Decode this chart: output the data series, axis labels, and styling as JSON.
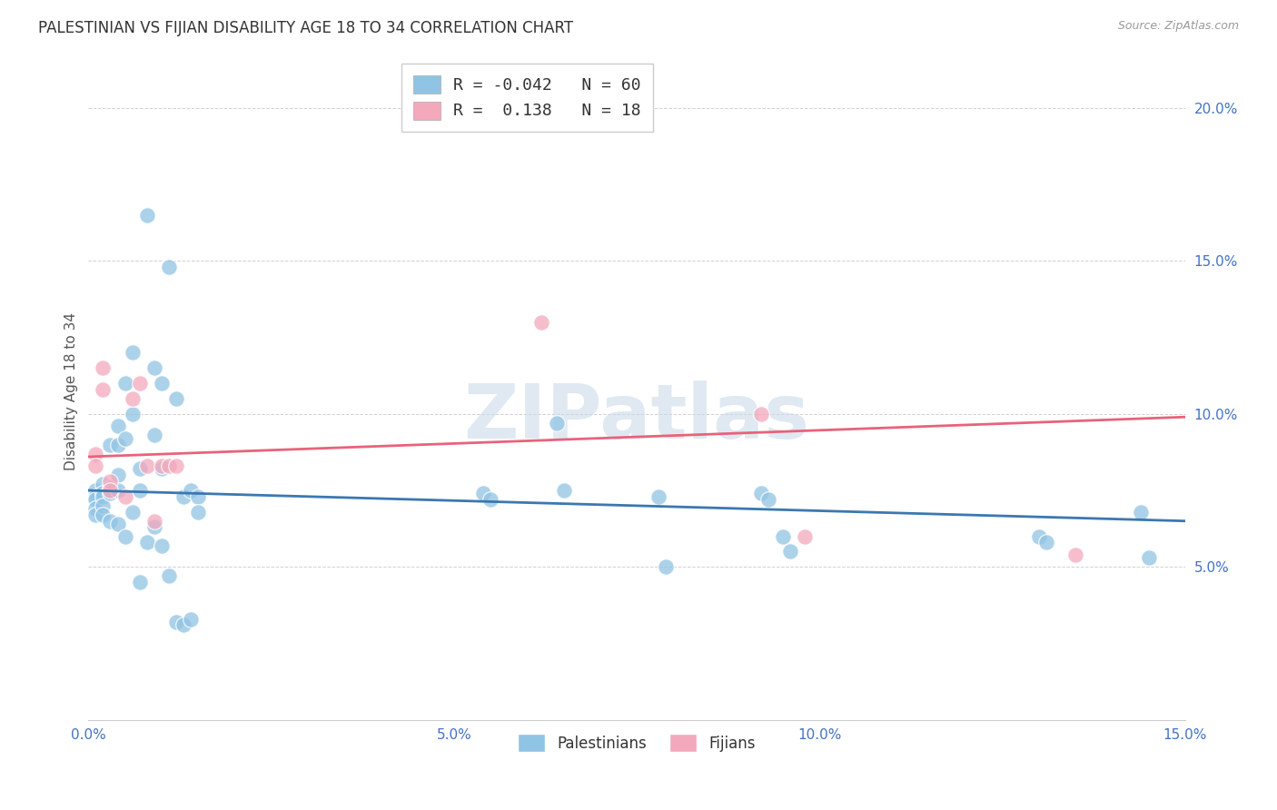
{
  "title": "PALESTINIAN VS FIJIAN DISABILITY AGE 18 TO 34 CORRELATION CHART",
  "source": "Source: ZipAtlas.com",
  "ylabel": "Disability Age 18 to 34",
  "xlabel": "",
  "xlim": [
    0.0,
    0.15
  ],
  "ylim": [
    0.0,
    0.215
  ],
  "xticks": [
    0.0,
    0.05,
    0.1,
    0.15
  ],
  "yticks": [
    0.05,
    0.1,
    0.15,
    0.2
  ],
  "pal_R": -0.042,
  "pal_N": 60,
  "fij_R": 0.138,
  "fij_N": 18,
  "pal_color": "#90c4e4",
  "fij_color": "#f4a8bc",
  "pal_line_color": "#3b78b0",
  "fij_line_color": "#e8637a",
  "watermark_color": "#c8d8e8",
  "palestinians_x": [
    0.001,
    0.001,
    0.001,
    0.001,
    0.001,
    0.002,
    0.002,
    0.002,
    0.002,
    0.002,
    0.003,
    0.003,
    0.003,
    0.003,
    0.004,
    0.004,
    0.004,
    0.004,
    0.004,
    0.005,
    0.005,
    0.005,
    0.006,
    0.006,
    0.006,
    0.007,
    0.007,
    0.007,
    0.008,
    0.008,
    0.009,
    0.009,
    0.009,
    0.01,
    0.01,
    0.01,
    0.011,
    0.011,
    0.012,
    0.012,
    0.013,
    0.013,
    0.014,
    0.014,
    0.015,
    0.015,
    0.054,
    0.055,
    0.064,
    0.065,
    0.078,
    0.079,
    0.092,
    0.093,
    0.095,
    0.096,
    0.13,
    0.131,
    0.144,
    0.145
  ],
  "palestinians_y": [
    0.075,
    0.073,
    0.072,
    0.069,
    0.067,
    0.077,
    0.074,
    0.073,
    0.07,
    0.067,
    0.09,
    0.076,
    0.074,
    0.065,
    0.096,
    0.09,
    0.08,
    0.075,
    0.064,
    0.11,
    0.092,
    0.06,
    0.12,
    0.1,
    0.068,
    0.082,
    0.075,
    0.045,
    0.165,
    0.058,
    0.115,
    0.093,
    0.063,
    0.11,
    0.082,
    0.057,
    0.148,
    0.047,
    0.105,
    0.032,
    0.073,
    0.031,
    0.075,
    0.033,
    0.073,
    0.068,
    0.074,
    0.072,
    0.097,
    0.075,
    0.073,
    0.05,
    0.074,
    0.072,
    0.06,
    0.055,
    0.06,
    0.058,
    0.068,
    0.053
  ],
  "fijians_x": [
    0.001,
    0.001,
    0.002,
    0.002,
    0.003,
    0.003,
    0.005,
    0.006,
    0.007,
    0.008,
    0.009,
    0.01,
    0.011,
    0.012,
    0.062,
    0.092,
    0.098,
    0.135
  ],
  "fijians_y": [
    0.087,
    0.083,
    0.115,
    0.108,
    0.078,
    0.075,
    0.073,
    0.105,
    0.11,
    0.083,
    0.065,
    0.083,
    0.083,
    0.083,
    0.13,
    0.1,
    0.06,
    0.054
  ],
  "pal_line_start_y": 0.075,
  "pal_line_end_y": 0.065,
  "fij_line_start_y": 0.086,
  "fij_line_end_y": 0.099,
  "title_fontsize": 12,
  "axis_label_fontsize": 11,
  "tick_fontsize": 11,
  "legend_fontsize": 12
}
